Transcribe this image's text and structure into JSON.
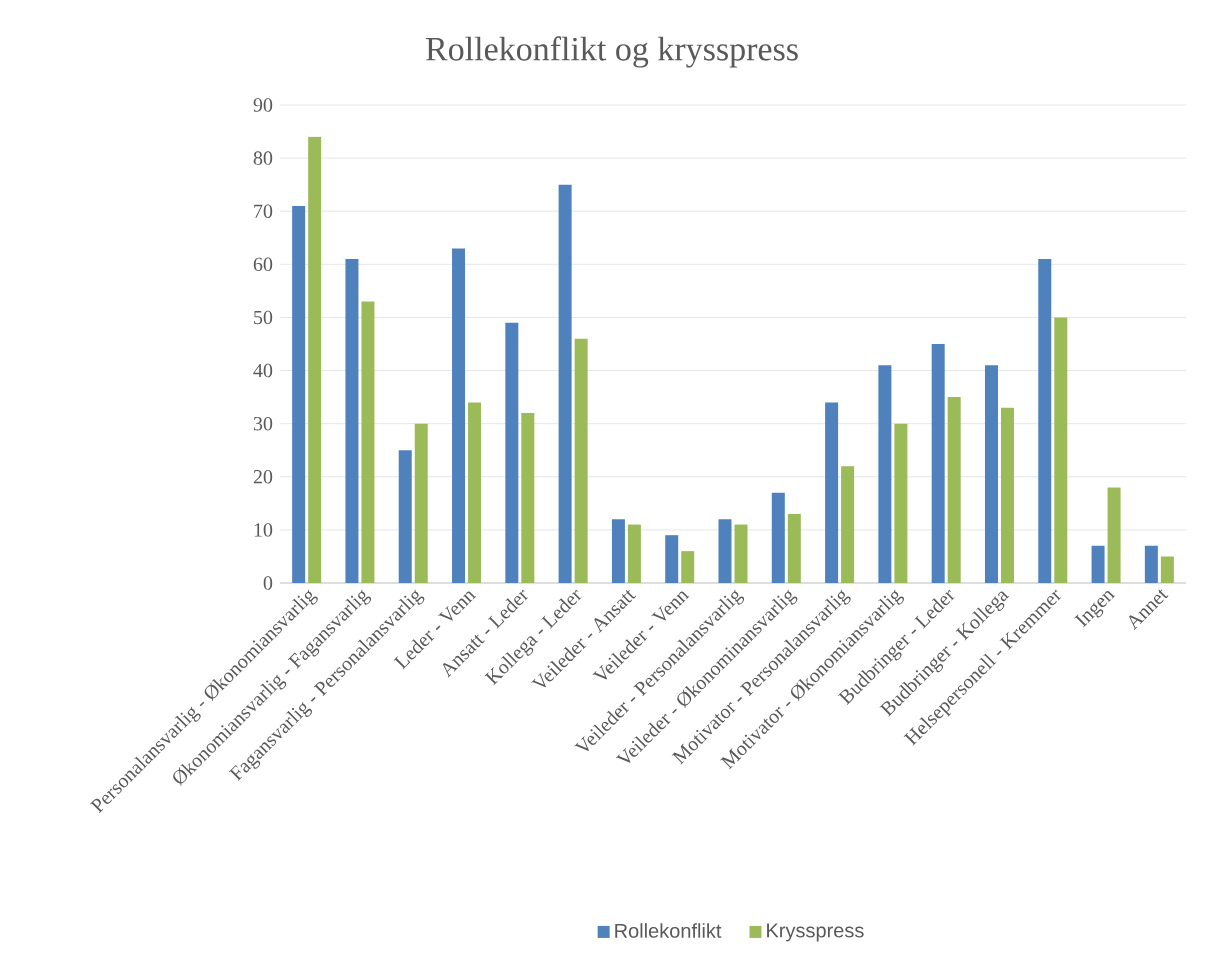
{
  "chart_data": {
    "type": "bar",
    "title": "Rollekonflikt og krysspress",
    "categories": [
      "Personalansvarlig - Økonomiansvarlig",
      "Økonomiansvarlig - Fagansvarlig",
      "Fagansvarlig - Personalansvarlig",
      "Leder - Venn",
      "Ansatt - Leder",
      "Kollega - Leder",
      "Veileder - Ansatt",
      "Veileder - Venn",
      "Veileder - Personalansvarlig",
      "Veileder - Økonominansvarlig",
      "Motivator - Personalansvarlig",
      "Motivator - Økonomiansvarlig",
      "Budbringer - Leder",
      "Budbringer - Kollega",
      "Helsepersonell - Kremmer",
      "Ingen",
      "Annet"
    ],
    "series": [
      {
        "name": "Rollekonflikt",
        "color": "#4f81bd",
        "values": [
          71,
          61,
          25,
          63,
          49,
          75,
          12,
          9,
          12,
          17,
          34,
          41,
          45,
          41,
          61,
          7,
          7
        ]
      },
      {
        "name": "Krysspress",
        "color": "#9bbb59",
        "values": [
          84,
          53,
          30,
          34,
          32,
          46,
          11,
          6,
          11,
          13,
          22,
          30,
          35,
          33,
          50,
          18,
          5
        ]
      }
    ],
    "ylim": [
      0,
      90
    ],
    "yticks": [
      0,
      10,
      20,
      30,
      40,
      50,
      60,
      70,
      80,
      90
    ],
    "grid": "y",
    "legend": "bottom"
  }
}
